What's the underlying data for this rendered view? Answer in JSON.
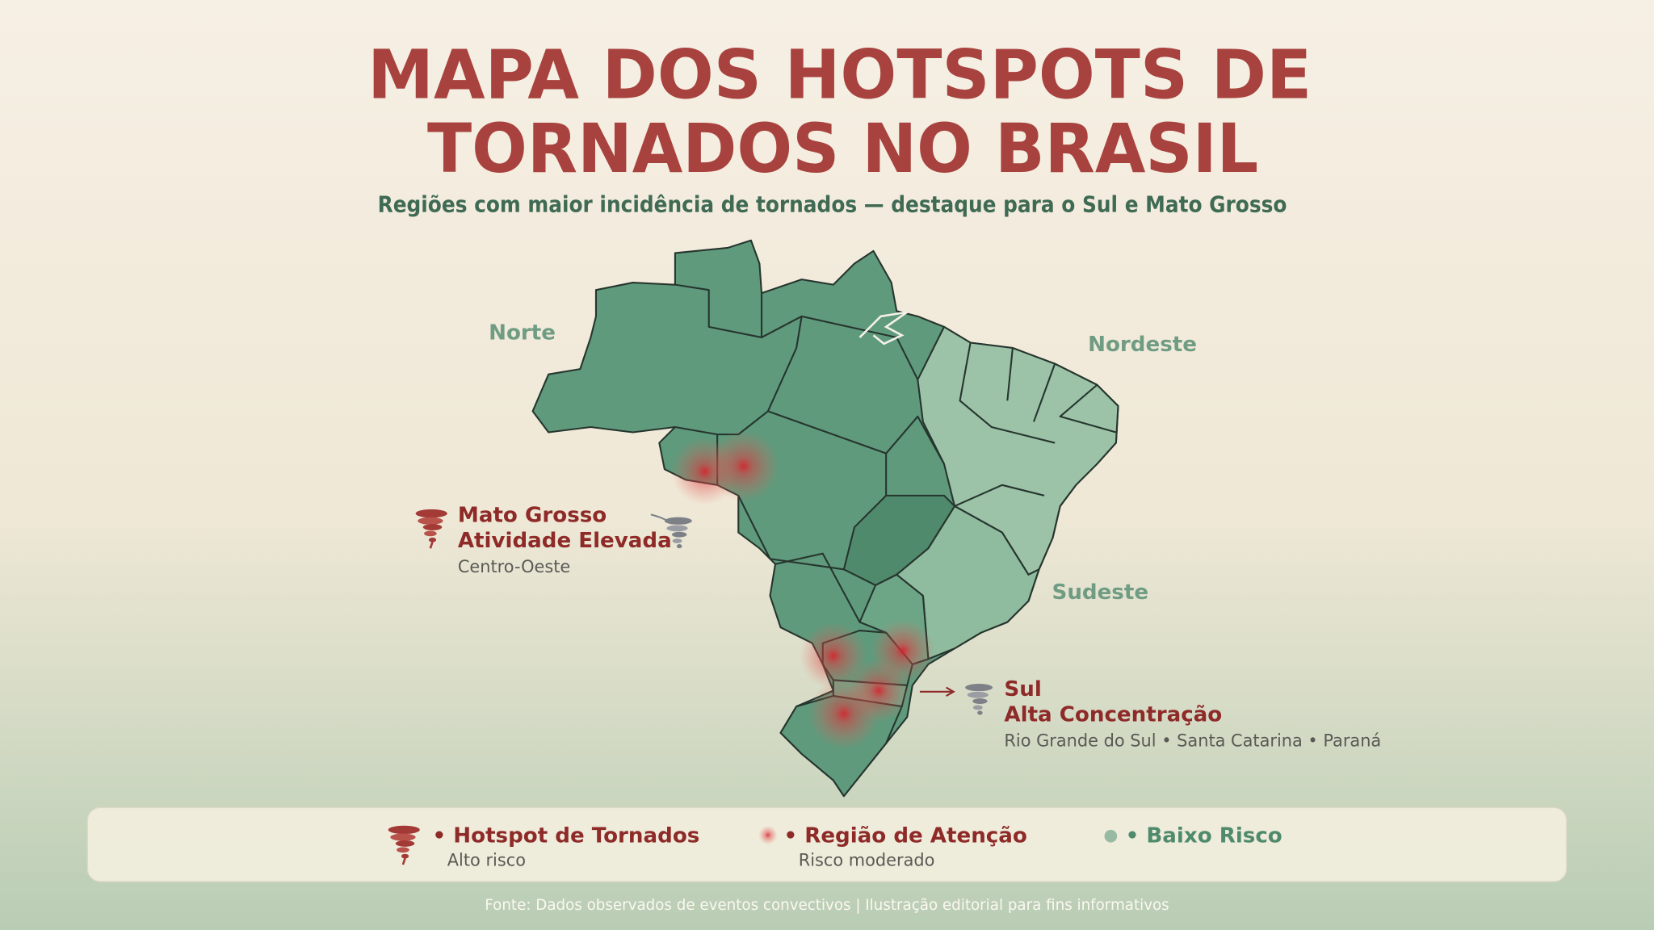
{
  "header": {
    "title_lines": [
      "MAPA DOS HOTSPOTS DE",
      "TORNADOS NO BRASIL"
    ],
    "subtitle": "Regiões com maior incidência de tornados — destaque para o Sul e Mato Grosso"
  },
  "regions": [
    "Norte",
    "Nordeste",
    "Sudeste"
  ],
  "callouts": [
    {
      "title": "Mato Grosso",
      "heading": "Atividade Elevada",
      "detail": "Centro-Oeste"
    },
    {
      "title": "Sul",
      "heading": "Alta Concentração",
      "detail": "Rio Grande do Sul • Santa Catarina • Paraná"
    }
  ],
  "legend": [
    {
      "label": "• Hotspot de Tornados",
      "note": "Alto risco"
    },
    {
      "label": "• Região de Atenção",
      "note": "Risco moderado"
    },
    {
      "label": "• Baixo Risco"
    }
  ],
  "source": "Fonte: Dados observados de eventos convectivos | Ilustração editorial para fins informativos"
}
